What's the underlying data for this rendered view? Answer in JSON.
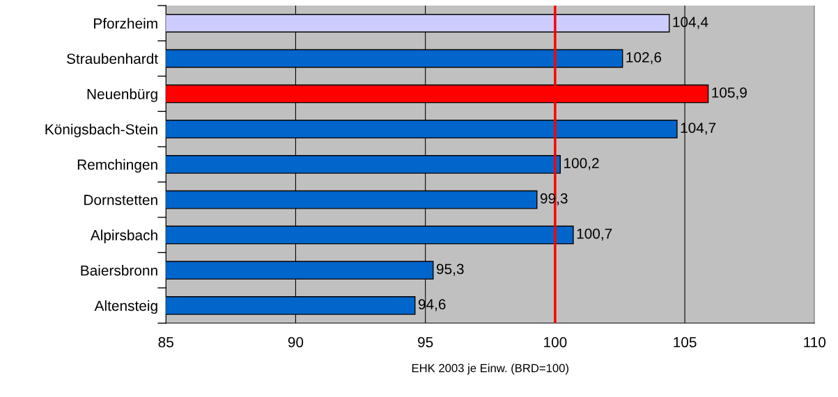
{
  "chart_data": {
    "type": "bar",
    "orientation": "horizontal",
    "xlabel": "EHK 2003 je Einw. (BRD=100)",
    "categories": [
      "Pforzheim",
      "Straubenhardt",
      "Neuenbürg",
      "Königsbach-Stein",
      "Remchingen",
      "Dornstetten",
      "Alpirsbach",
      "Baiersbronn",
      "Altensteig"
    ],
    "values": [
      104.4,
      102.6,
      105.9,
      104.7,
      100.2,
      99.3,
      100.7,
      95.3,
      94.6
    ],
    "value_labels": [
      "104,4",
      "102,6",
      "105,9",
      "104,7",
      "100,2",
      "99,3",
      "100,7",
      "95,3",
      "94,6"
    ],
    "colors": [
      "#ccccff",
      "#0066cc",
      "#ff0000",
      "#0066cc",
      "#0066cc",
      "#0066cc",
      "#0066cc",
      "#0066cc",
      "#0066cc"
    ],
    "xlim": [
      85,
      110
    ],
    "xticks": [
      85,
      90,
      95,
      100,
      105,
      110
    ],
    "grid": "x",
    "ref_lines": [
      {
        "axis": "x",
        "value": 100,
        "color": "#ff0000"
      }
    ]
  }
}
